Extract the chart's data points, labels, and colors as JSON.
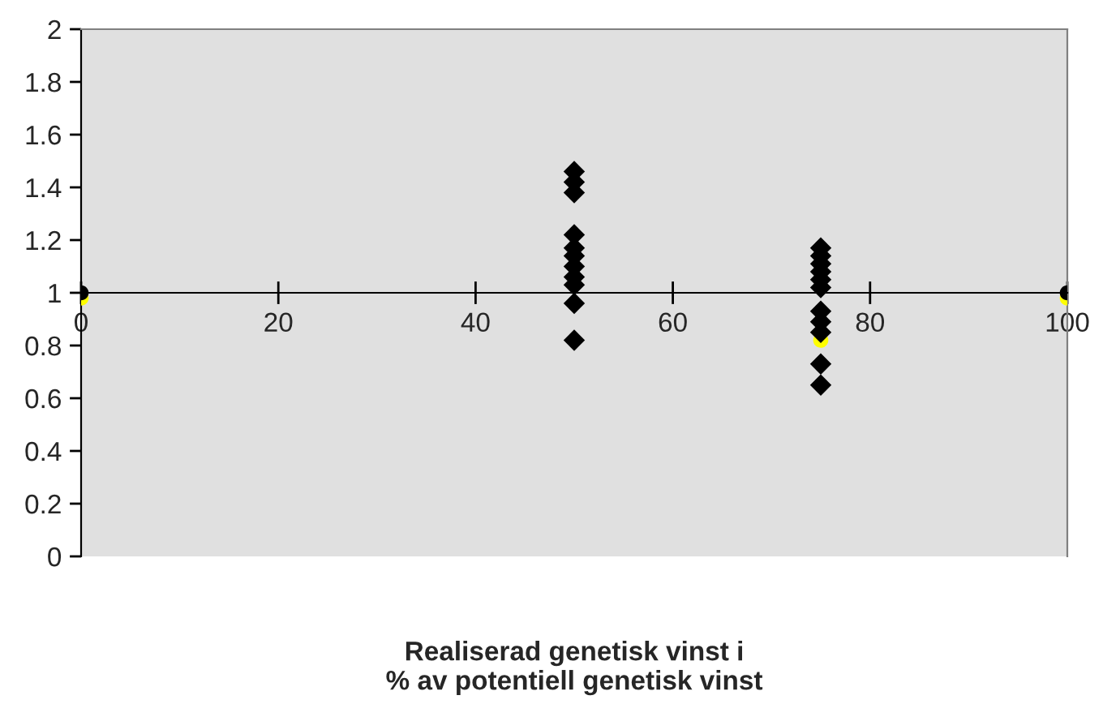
{
  "chart_data": {
    "type": "scatter",
    "xlabel": "Realiserad genetisk vinst i\n% av potentiell genetisk vinst",
    "xlim": [
      0,
      100
    ],
    "xticks": [
      0,
      20,
      40,
      60,
      80,
      100
    ],
    "ylim": [
      0,
      2
    ],
    "yticks": [
      0,
      0.2,
      0.4,
      0.6,
      0.8,
      1,
      1.2,
      1.4,
      1.6,
      1.8,
      2
    ],
    "grid": false,
    "legend": false,
    "series": [
      {
        "color": "#ffff00",
        "marker": "circle",
        "x": [
          0,
          75,
          100
        ],
        "values": [
          0.98,
          0.82,
          0.98
        ]
      },
      {
        "color": "#000000",
        "marker": "circle",
        "x": [
          0,
          100
        ],
        "values": [
          1,
          1
        ]
      },
      {
        "color": "#000000",
        "marker": "diamond",
        "x": [
          50,
          50,
          50,
          50,
          50,
          50,
          50,
          50,
          50,
          50,
          50,
          75,
          75,
          75,
          75,
          75,
          75,
          75,
          75,
          75,
          75,
          75
        ],
        "values": [
          1.46,
          1.42,
          1.38,
          1.22,
          1.17,
          1.14,
          1.1,
          1.06,
          1.03,
          0.96,
          0.82,
          1.17,
          1.14,
          1.11,
          1.08,
          1.05,
          1.02,
          0.93,
          0.89,
          0.85,
          0.73,
          0.65
        ]
      }
    ]
  }
}
